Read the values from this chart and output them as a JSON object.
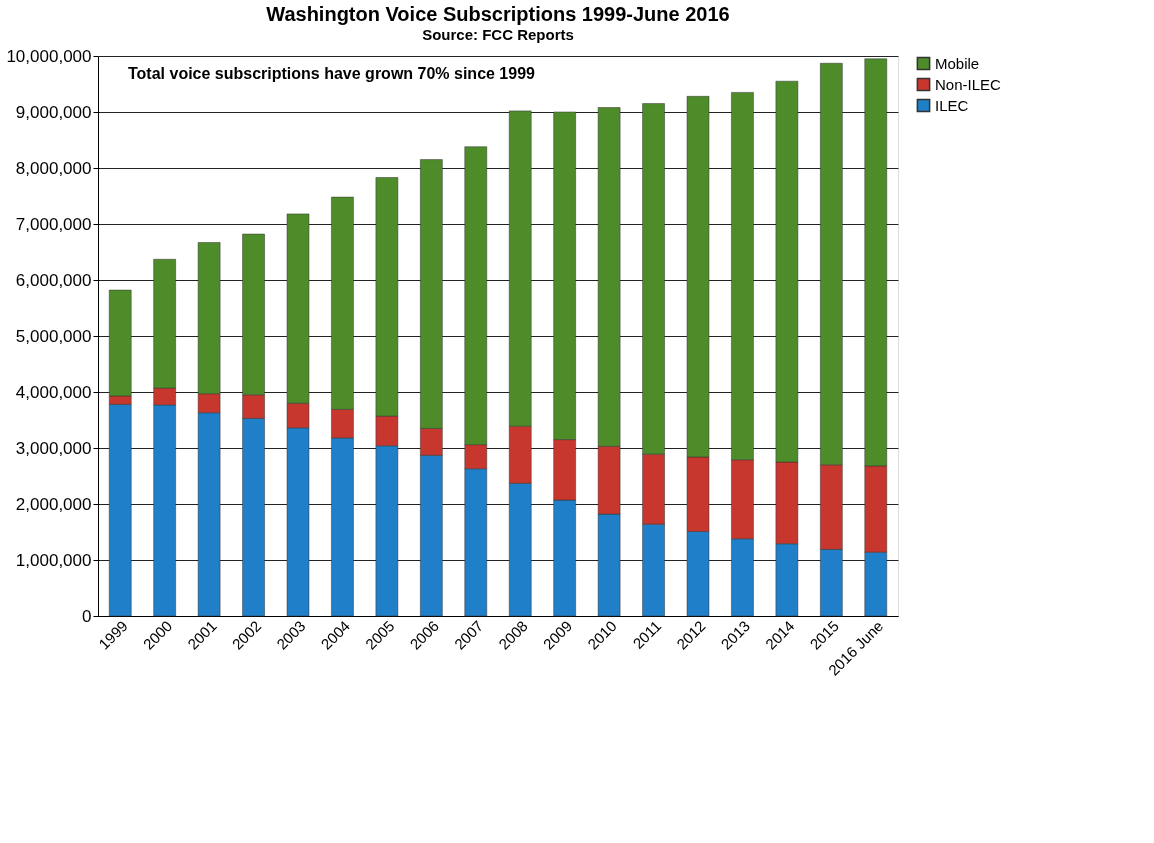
{
  "chart_data": {
    "type": "bar",
    "stacked": true,
    "title": "Washington Voice Subscriptions 1999-June 2016",
    "subtitle": "Source: FCC Reports",
    "categories": [
      "1999",
      "2000",
      "2001",
      "2002",
      "2003",
      "2004",
      "2005",
      "2006",
      "2007",
      "2008",
      "2009",
      "2010",
      "2011",
      "2012",
      "2013",
      "2014",
      "2015",
      "2016 June"
    ],
    "series": [
      {
        "name": "ILEC",
        "color": "#1f7fc8",
        "values": [
          3780000,
          3770000,
          3630000,
          3530000,
          3360000,
          3180000,
          3040000,
          2870000,
          2630000,
          2370000,
          2070000,
          1820000,
          1640000,
          1510000,
          1380000,
          1290000,
          1190000,
          1140000
        ]
      },
      {
        "name": "Non-ILEC",
        "color": "#c8372d",
        "values": [
          150000,
          300000,
          340000,
          420000,
          440000,
          510000,
          530000,
          480000,
          430000,
          1020000,
          1080000,
          1210000,
          1250000,
          1330000,
          1410000,
          1460000,
          1510000,
          1540000
        ]
      },
      {
        "name": "Mobile",
        "color": "#4e8c2a",
        "values": [
          1890000,
          2300000,
          2700000,
          2870000,
          3380000,
          3790000,
          4260000,
          4800000,
          5320000,
          5630000,
          5850000,
          6050000,
          6260000,
          6440000,
          6560000,
          6800000,
          7170000,
          7270000
        ]
      }
    ],
    "ylim": [
      0,
      10000000
    ],
    "yticks": [
      0,
      {
        "value": 1000000,
        "label": "1,000,000"
      },
      {
        "value": 2000000,
        "label": "2,000,000"
      },
      {
        "value": 3000000,
        "label": "3,000,000"
      },
      {
        "value": 4000000,
        "label": "4,000,000"
      },
      {
        "value": 5000000,
        "label": "5,000,000"
      },
      {
        "value": 6000000,
        "label": "6,000,000"
      },
      {
        "value": 7000000,
        "label": "7,000,000"
      },
      {
        "value": 8000000,
        "label": "8,000,000"
      },
      {
        "value": 9000000,
        "label": "9,000,000"
      },
      {
        "value": 10000000,
        "label": "10,000,000"
      }
    ],
    "grid": "y",
    "legend": "right",
    "annotations": [
      "Total voice subscriptions have grown 70% since 1999"
    ]
  }
}
